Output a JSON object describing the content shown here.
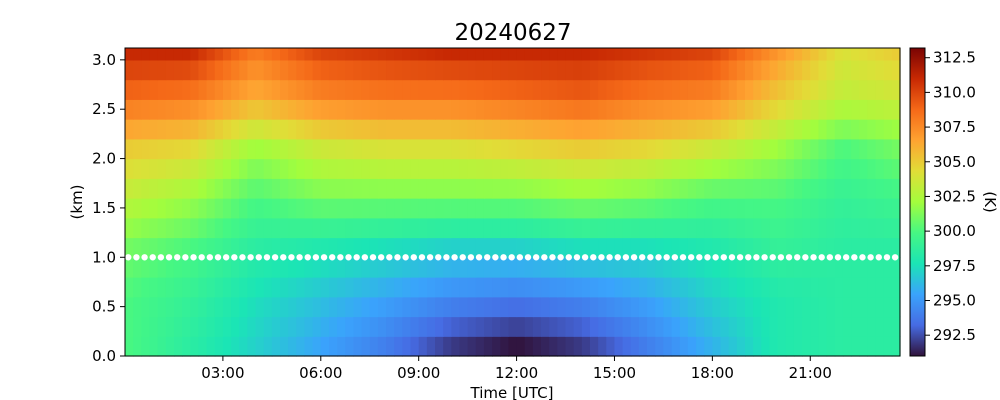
{
  "chart_data": {
    "type": "heatmap",
    "title": "20240627",
    "xlabel": "Time [UTC]",
    "ylabel": "(km)",
    "colorbar_label": "(K)",
    "colormap": "turbo",
    "x_ticks": [
      "03:00",
      "06:00",
      "09:00",
      "12:00",
      "15:00",
      "18:00",
      "21:00"
    ],
    "x_tick_hours": [
      3,
      6,
      9,
      12,
      15,
      18,
      21
    ],
    "xlim_hours": [
      0,
      23.75
    ],
    "y_ticks": [
      "0.0",
      "0.5",
      "1.0",
      "1.5",
      "2.0",
      "2.5",
      "3.0"
    ],
    "y_tick_values": [
      0.0,
      0.5,
      1.0,
      1.5,
      2.0,
      2.5,
      3.0
    ],
    "ylim_km": [
      0,
      3.12
    ],
    "colorbar_ticks": [
      "292.5",
      "295.0",
      "297.5",
      "300.0",
      "302.5",
      "305.0",
      "307.5",
      "310.0",
      "312.5"
    ],
    "colorbar_tick_values": [
      292.5,
      295.0,
      297.5,
      300.0,
      302.5,
      305.0,
      307.5,
      310.0,
      312.5
    ],
    "clim": [
      291.0,
      313.2
    ],
    "overlay_line": {
      "style": "dotted",
      "color": "#ffffff",
      "y_km": 1.0
    },
    "heights_km": [
      0.0,
      0.2,
      0.4,
      0.6,
      0.8,
      1.0,
      1.2,
      1.4,
      1.6,
      1.8,
      2.0,
      2.2,
      2.4,
      2.6,
      2.8,
      3.0
    ],
    "times_hours": [
      0,
      2,
      4,
      6,
      8,
      10,
      12,
      14,
      16,
      18,
      20,
      22,
      23.75
    ],
    "series": [
      {
        "name": "0.0 km",
        "values": [
          300.0,
          298.5,
          297.0,
          295.5,
          294.0,
          292.0,
          291.0,
          292.0,
          294.0,
          296.0,
          298.0,
          298.5,
          298.5
        ]
      },
      {
        "name": "0.5 km",
        "values": [
          300.0,
          299.0,
          297.5,
          296.5,
          295.5,
          294.5,
          294.0,
          294.5,
          295.5,
          297.0,
          298.0,
          298.5,
          298.5
        ]
      },
      {
        "name": "1.0 km",
        "values": [
          301.0,
          300.0,
          298.5,
          298.0,
          297.5,
          297.0,
          297.0,
          297.5,
          297.5,
          298.0,
          299.0,
          298.5,
          298.5
        ]
      },
      {
        "name": "1.5 km",
        "values": [
          303.0,
          302.0,
          300.0,
          301.0,
          301.0,
          301.0,
          301.0,
          301.5,
          301.0,
          300.0,
          300.0,
          299.0,
          299.5
        ]
      },
      {
        "name": "2.0 km",
        "values": [
          305.0,
          304.5,
          302.0,
          303.5,
          304.0,
          304.0,
          304.5,
          305.0,
          304.5,
          303.5,
          302.0,
          300.0,
          301.0
        ]
      },
      {
        "name": "2.5 km",
        "values": [
          308.5,
          308.0,
          306.0,
          307.5,
          308.0,
          308.0,
          308.5,
          309.0,
          308.0,
          307.5,
          305.0,
          303.0,
          303.5
        ]
      },
      {
        "name": "3.0 km",
        "values": [
          311.0,
          311.0,
          308.0,
          310.0,
          310.5,
          311.0,
          311.0,
          311.0,
          310.5,
          310.0,
          307.0,
          304.0,
          305.0
        ]
      }
    ]
  }
}
